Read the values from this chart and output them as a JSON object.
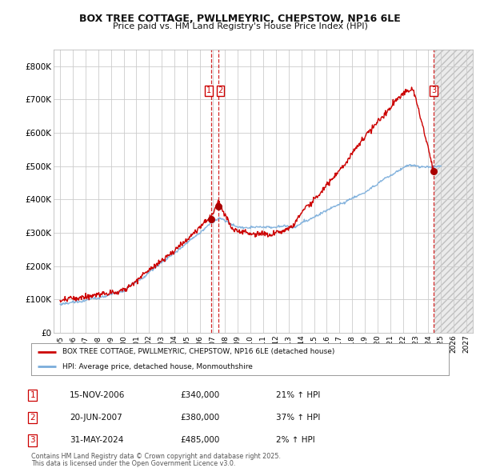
{
  "title1": "BOX TREE COTTAGE, PWLLMEYRIC, CHEPSTOW, NP16 6LE",
  "title2": "Price paid vs. HM Land Registry's House Price Index (HPI)",
  "bg_color": "#ffffff",
  "plot_bg_color": "#ffffff",
  "grid_color": "#cccccc",
  "line1_color": "#cc0000",
  "line2_color": "#7aaddb",
  "vline_color": "#cc0000",
  "transactions": [
    {
      "date_num": 2006.876,
      "price": 340000,
      "label": "1"
    },
    {
      "date_num": 2007.468,
      "price": 380000,
      "label": "2"
    },
    {
      "date_num": 2024.414,
      "price": 485000,
      "label": "3"
    }
  ],
  "legend_line1": "BOX TREE COTTAGE, PWLLMEYRIC, CHEPSTOW, NP16 6LE (detached house)",
  "legend_line2": "HPI: Average price, detached house, Monmouthshire",
  "table_rows": [
    {
      "num": "1",
      "date": "15-NOV-2006",
      "price": "£340,000",
      "hpi": "21% ↑ HPI"
    },
    {
      "num": "2",
      "date": "20-JUN-2007",
      "price": "£380,000",
      "hpi": "37% ↑ HPI"
    },
    {
      "num": "3",
      "date": "31-MAY-2024",
      "price": "£485,000",
      "hpi": "2% ↑ HPI"
    }
  ],
  "footnote1": "Contains HM Land Registry data © Crown copyright and database right 2025.",
  "footnote2": "This data is licensed under the Open Government Licence v3.0.",
  "xmin": 1994.5,
  "xmax": 2027.5,
  "ymin": 0,
  "ymax": 850000,
  "yticks": [
    0,
    100000,
    200000,
    300000,
    400000,
    500000,
    600000,
    700000,
    800000
  ],
  "ytick_labels": [
    "£0",
    "£100K",
    "£200K",
    "£300K",
    "£400K",
    "£500K",
    "£600K",
    "£700K",
    "£800K"
  ],
  "xticks": [
    1995,
    1996,
    1997,
    1998,
    1999,
    2000,
    2001,
    2002,
    2003,
    2004,
    2005,
    2006,
    2007,
    2008,
    2009,
    2010,
    2011,
    2012,
    2013,
    2014,
    2015,
    2016,
    2017,
    2018,
    2019,
    2020,
    2021,
    2022,
    2023,
    2024,
    2025,
    2026,
    2027
  ],
  "future_start": 2024.5,
  "prop_marker_color": "#aa0000"
}
